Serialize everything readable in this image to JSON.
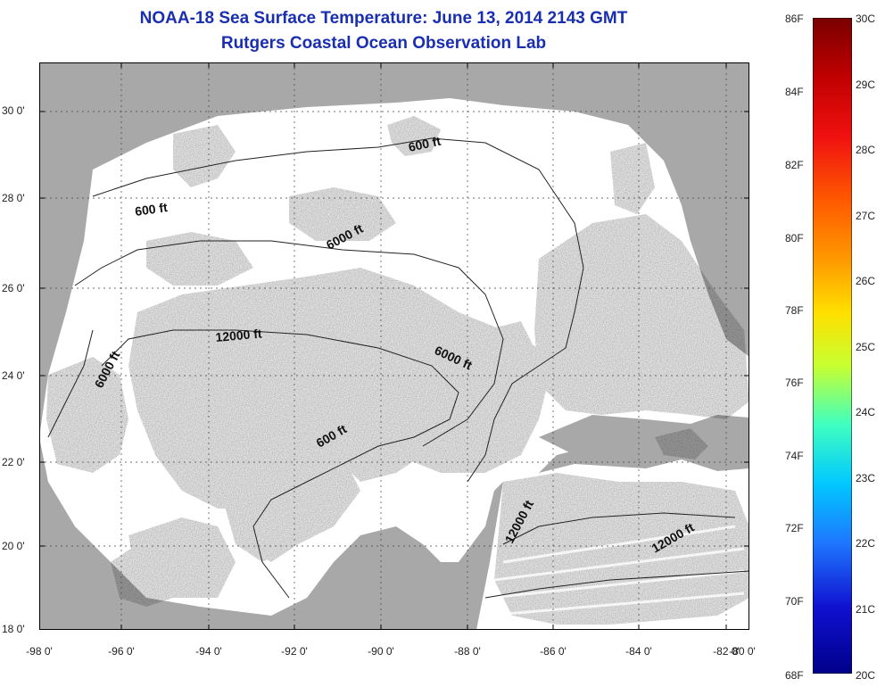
{
  "header": {
    "title": "NOAA-18 Sea Surface Temperature:  June 13, 2014 2143 GMT",
    "subtitle": "Rutgers Coastal Ocean Observation Lab"
  },
  "map": {
    "lat_labels": [
      "30 0'",
      "28 0'",
      "26 0'",
      "24 0'",
      "22 0'",
      "20 0'",
      "18 0'"
    ],
    "lon_labels": [
      "-98 0'",
      "-96 0'",
      "-94 0'",
      "-92 0'",
      "-90 0'",
      "-88 0'",
      "-86 0'",
      "-84 0'",
      "-82 0'",
      "-80 0'"
    ],
    "contour_labels": [
      "600 ft",
      "600 ft",
      "6000 ft",
      "12000 ft",
      "6000 ft",
      "6000 ft",
      "600 ft",
      "12000 ft",
      "12000 ft"
    ],
    "colors": {
      "land": "#a8a8a8",
      "cloud": "#ffffff",
      "contour": "#222222",
      "grid": "#444444"
    }
  },
  "colorbar": {
    "f_labels": [
      "86F",
      "84F",
      "82F",
      "80F",
      "78F",
      "76F",
      "74F",
      "72F",
      "70F",
      "68F"
    ],
    "c_labels": [
      "30C",
      "29C",
      "28C",
      "27C",
      "26C",
      "25C",
      "24C",
      "23C",
      "22C",
      "21C",
      "20C"
    ],
    "stops": [
      "#7a0000",
      "#c00000",
      "#f01010",
      "#ff5a00",
      "#ff9a00",
      "#ffe000",
      "#c8ff30",
      "#40ffc0",
      "#00c8ff",
      "#1e78ff",
      "#1010d0",
      "#00008a"
    ]
  }
}
